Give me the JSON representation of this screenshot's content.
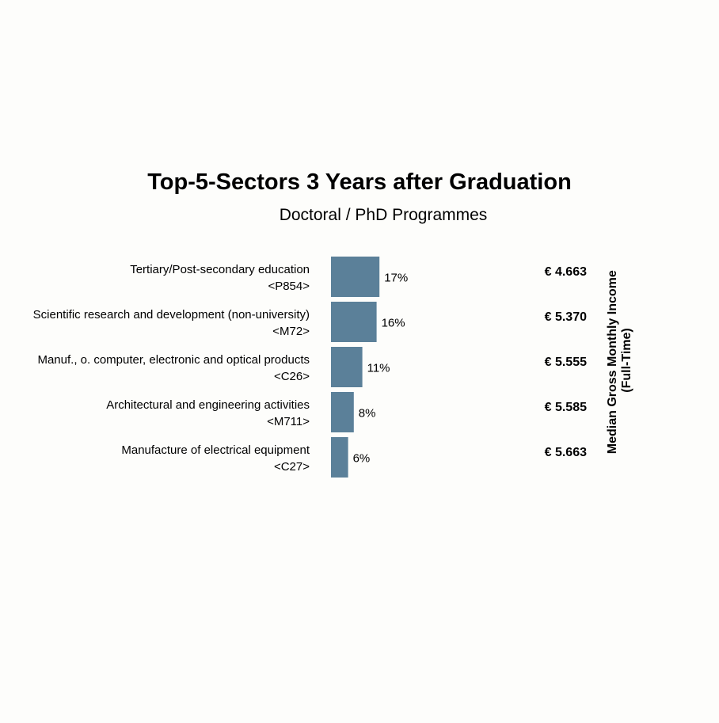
{
  "colors": {
    "bar": "#5b8099",
    "background": "#fdfdfb",
    "text": "#111111"
  },
  "chart_data": {
    "type": "bar",
    "orientation": "horizontal",
    "title": "Top-5-Sectors 3 Years after Graduation",
    "subtitle": "Doctoral / PhD Programmes",
    "categories": [
      {
        "name": "Tertiary/Post-secondary education",
        "code": "<P854>"
      },
      {
        "name": "Scientific research and development (non-university)",
        "code": "<M72>"
      },
      {
        "name": "Manuf., o. computer, electronic and optical products",
        "code": "<C26>"
      },
      {
        "name": "Architectural and engineering activities",
        "code": "<M711>"
      },
      {
        "name": "Manufacture of electrical equipment",
        "code": "<C27>"
      }
    ],
    "values": [
      17,
      16,
      11,
      8,
      6
    ],
    "value_labels": [
      "17%",
      "16%",
      "11%",
      "8%",
      "6%"
    ],
    "income_labels": [
      "€ 4.663",
      "€ 5.370",
      "€ 5.555",
      "€ 5.585",
      "€ 5.663"
    ],
    "income_axis_label": [
      "Median Gross Monthly Income",
      "(Full-Time)"
    ],
    "xlim": [
      0,
      100
    ],
    "grid": false
  }
}
